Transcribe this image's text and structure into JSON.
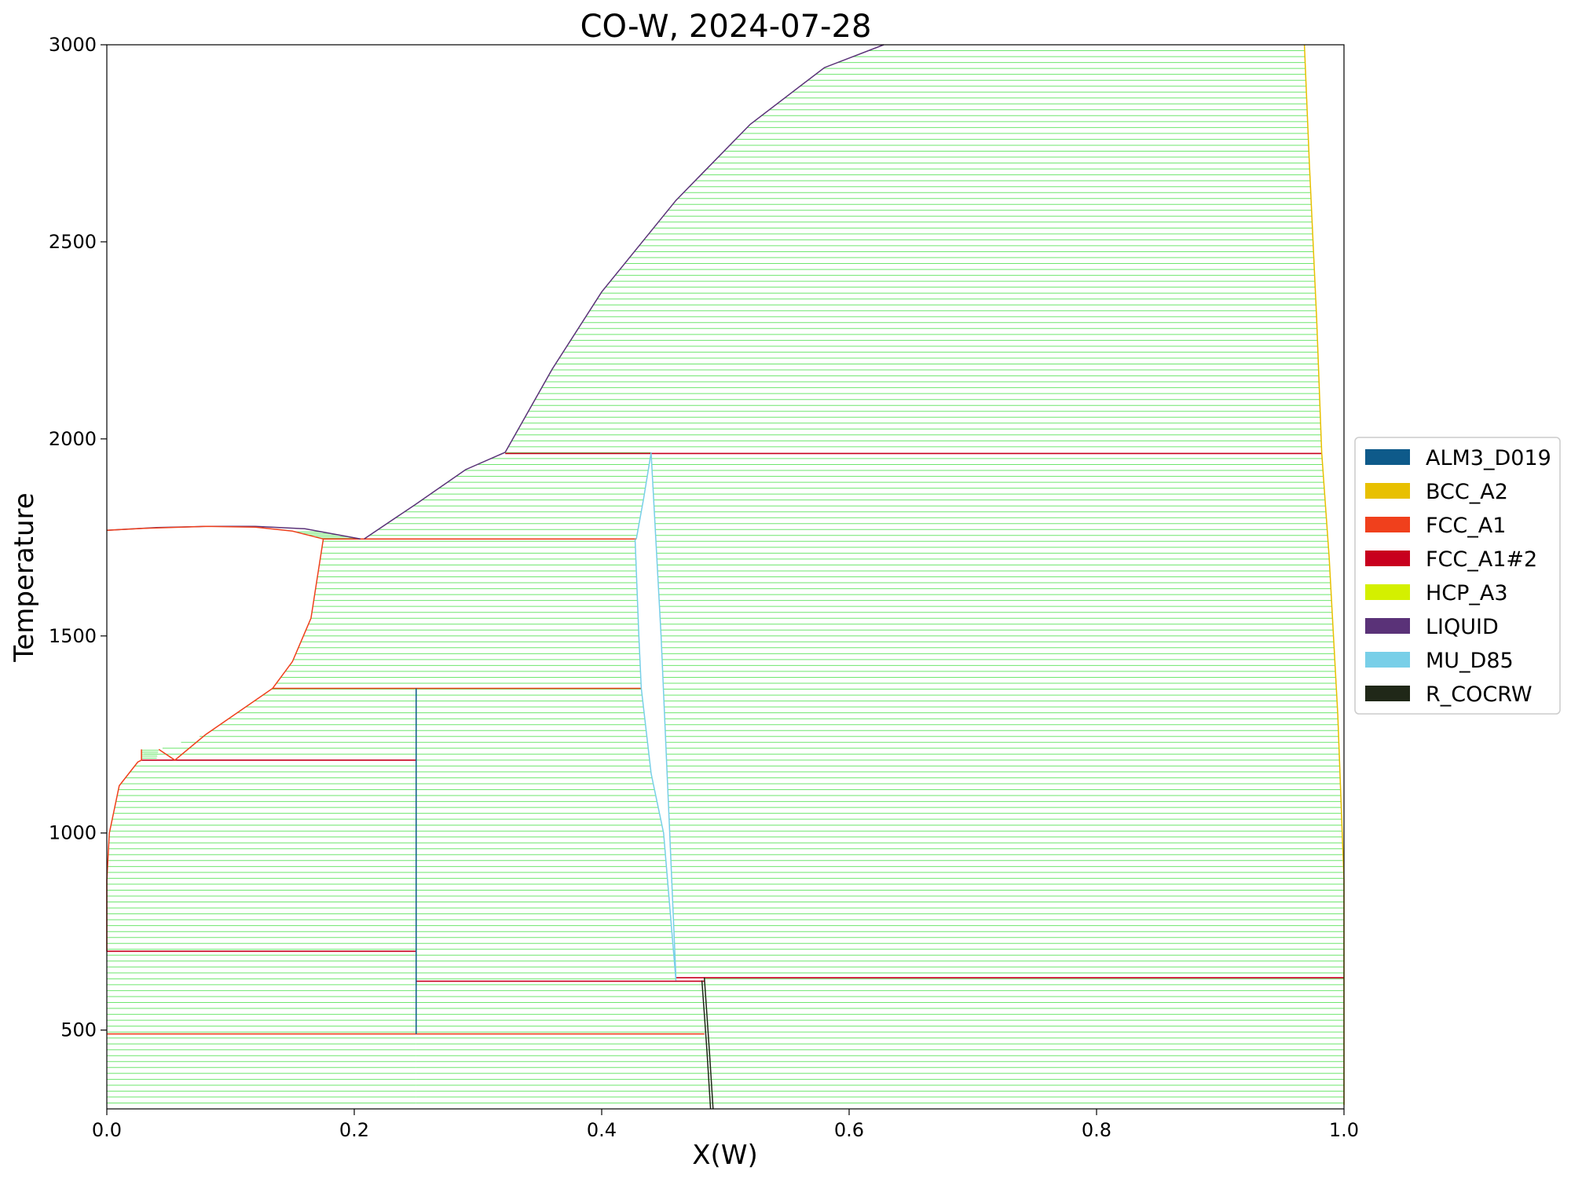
{
  "chart_data": {
    "type": "phase-diagram",
    "title": "CO-W, 2024-07-28",
    "xlabel": "X(W)",
    "ylabel": "Temperature",
    "xlim": [
      0.0,
      1.0
    ],
    "ylim": [
      300,
      3000
    ],
    "xticks": [
      0.0,
      0.2,
      0.4,
      0.6,
      0.8,
      1.0
    ],
    "xtick_labels": [
      "0.0",
      "0.2",
      "0.4",
      "0.6",
      "0.8",
      "1.0"
    ],
    "yticks": [
      500,
      1000,
      1500,
      2000,
      2500,
      3000
    ],
    "ytick_labels": [
      "500",
      "1000",
      "1500",
      "2000",
      "2500",
      "3000"
    ],
    "grid": false,
    "legend_position": "right-center",
    "tieline_color": "#6ee66e",
    "legend": [
      {
        "name": "ALM3_D019",
        "color": "#0e5a8a"
      },
      {
        "name": "BCC_A2",
        "color": "#e8c000"
      },
      {
        "name": "FCC_A1",
        "color": "#f0401c"
      },
      {
        "name": "FCC_A1#2",
        "color": "#c8001e"
      },
      {
        "name": "HCP_A3",
        "color": "#d4f000"
      },
      {
        "name": "LIQUID",
        "color": "#5a3278"
      },
      {
        "name": "MU_D85",
        "color": "#78cfe8"
      },
      {
        "name": "R_COCRW",
        "color": "#202818"
      }
    ],
    "two_phase_regions": [
      {
        "name": "liquid+fcc",
        "spacing": 4,
        "left": [
          [
            0.0,
            1768
          ],
          [
            0.03,
            1773
          ],
          [
            0.08,
            1778
          ],
          [
            0.12,
            1776
          ],
          [
            0.15,
            1766
          ],
          [
            0.175,
            1746
          ]
        ],
        "right": [
          [
            0.0,
            1768
          ],
          [
            0.04,
            1775
          ],
          [
            0.08,
            1778
          ],
          [
            0.12,
            1778
          ],
          [
            0.16,
            1772
          ],
          [
            0.205,
            1746
          ]
        ]
      },
      {
        "name": "liquid+mu",
        "spacing": 15,
        "left": [
          [
            0.208,
            1746
          ],
          [
            0.25,
            1835
          ],
          [
            0.29,
            1922
          ],
          [
            0.322,
            1966
          ]
        ],
        "right": [
          [
            0.428,
            1746
          ],
          [
            0.434,
            1850
          ],
          [
            0.44,
            1966
          ]
        ]
      },
      {
        "name": "liquid+bcc",
        "spacing": 15,
        "left": [
          [
            0.322,
            1966
          ],
          [
            0.36,
            2177
          ],
          [
            0.4,
            2373
          ],
          [
            0.46,
            2605
          ],
          [
            0.52,
            2798
          ],
          [
            0.58,
            2942
          ],
          [
            0.628,
            3000
          ]
        ],
        "right": [
          [
            0.982,
            1966
          ],
          [
            0.978,
            2300
          ],
          [
            0.972,
            2700
          ],
          [
            0.968,
            3000
          ]
        ]
      },
      {
        "name": "fcc+mu",
        "spacing": 15,
        "left": [
          [
            0.134,
            1367
          ],
          [
            0.15,
            1435
          ],
          [
            0.165,
            1545
          ],
          [
            0.175,
            1746
          ]
        ],
        "right": [
          [
            0.432,
            1367
          ],
          [
            0.43,
            1500
          ],
          [
            0.427,
            1746
          ]
        ]
      },
      {
        "name": "fcc+alm3-high",
        "spacing": 15,
        "left": [
          [
            0.03,
            1200
          ],
          [
            0.08,
            1250
          ],
          [
            0.134,
            1367
          ]
        ],
        "right": [
          [
            0.25,
            1200
          ],
          [
            0.25,
            1367
          ]
        ]
      },
      {
        "name": "fcc-small",
        "spacing": 5,
        "left": [
          [
            0.028,
            1185
          ],
          [
            0.028,
            1212
          ]
        ],
        "right": [
          [
            0.04,
            1185
          ],
          [
            0.042,
            1212
          ]
        ]
      },
      {
        "name": "fcc+alm3",
        "spacing": 15,
        "left": [
          [
            0.0,
            700
          ],
          [
            0.0,
            880
          ],
          [
            0.002,
            1000
          ],
          [
            0.01,
            1120
          ],
          [
            0.025,
            1180
          ],
          [
            0.045,
            1185
          ]
        ],
        "right": [
          [
            0.25,
            700
          ],
          [
            0.25,
            1185
          ]
        ]
      },
      {
        "name": "hcp+alm3",
        "spacing": 15,
        "left": [
          [
            0.0,
            310
          ],
          [
            0.0,
            700
          ]
        ],
        "right": [
          [
            0.25,
            310
          ],
          [
            0.25,
            700
          ]
        ]
      },
      {
        "name": "alm3+mu",
        "spacing": 15,
        "left": [
          [
            0.25,
            626
          ],
          [
            0.25,
            1367
          ]
        ],
        "right": [
          [
            0.46,
            626
          ],
          [
            0.45,
            1000
          ],
          [
            0.44,
            1150
          ],
          [
            0.432,
            1367
          ]
        ]
      },
      {
        "name": "mu+bcc",
        "spacing": 15,
        "left": [
          [
            0.46,
            633
          ],
          [
            0.455,
            1000
          ],
          [
            0.448,
            1500
          ],
          [
            0.44,
            1962
          ]
        ],
        "right": [
          [
            1.0,
            633
          ],
          [
            1.0,
            880
          ],
          [
            0.995,
            1300
          ],
          [
            0.988,
            1700
          ],
          [
            0.982,
            1962
          ]
        ]
      },
      {
        "name": "alm3+r",
        "spacing": 15,
        "left": [
          [
            0.25,
            310
          ],
          [
            0.25,
            626
          ]
        ],
        "right": [
          [
            0.49,
            310
          ],
          [
            0.487,
            450
          ],
          [
            0.483,
            626
          ]
        ]
      },
      {
        "name": "r+bcc",
        "spacing": 15,
        "left": [
          [
            0.49,
            310
          ],
          [
            0.487,
            450
          ],
          [
            0.483,
            633
          ]
        ],
        "right": [
          [
            1.0,
            310
          ],
          [
            1.0,
            633
          ]
        ]
      }
    ],
    "invariant_lines": [
      {
        "x": [
          0.322,
          0.982
        ],
        "y": 1963,
        "color": "#c8001e"
      },
      {
        "x": [
          0.175,
          0.428
        ],
        "y": 1746,
        "color": "#f0401c"
      },
      {
        "x": [
          0.134,
          0.432
        ],
        "y": 1367,
        "color": "#f0401c"
      },
      {
        "x": [
          0.028,
          0.25
        ],
        "y": 1185,
        "color": "#c8001e"
      },
      {
        "x": [
          0.0,
          0.25
        ],
        "y": 700,
        "color": "#c8001e"
      },
      {
        "x": [
          0.25,
          0.483
        ],
        "y": 624,
        "color": "#c8001e"
      },
      {
        "x": [
          0.46,
          1.0
        ],
        "y": 633,
        "color": "#c8001e"
      },
      {
        "x": [
          0.0,
          0.483
        ],
        "y": 490,
        "color": "#f0401c"
      }
    ],
    "phase_boundaries": [
      {
        "color": "#5a3278",
        "points": [
          [
            0.0,
            1768
          ],
          [
            0.04,
            1775
          ],
          [
            0.08,
            1778
          ],
          [
            0.12,
            1778
          ],
          [
            0.16,
            1772
          ],
          [
            0.205,
            1746
          ]
        ]
      },
      {
        "color": "#5a3278",
        "points": [
          [
            0.208,
            1746
          ],
          [
            0.25,
            1835
          ],
          [
            0.29,
            1922
          ],
          [
            0.322,
            1966
          ]
        ]
      },
      {
        "color": "#5a3278",
        "points": [
          [
            0.322,
            1966
          ],
          [
            0.36,
            2177
          ],
          [
            0.4,
            2373
          ],
          [
            0.46,
            2605
          ],
          [
            0.52,
            2798
          ],
          [
            0.58,
            2942
          ],
          [
            0.628,
            3000
          ]
        ]
      },
      {
        "color": "#f0401c",
        "points": [
          [
            0.0,
            1768
          ],
          [
            0.03,
            1773
          ],
          [
            0.08,
            1778
          ],
          [
            0.12,
            1776
          ],
          [
            0.15,
            1766
          ],
          [
            0.175,
            1746
          ]
        ]
      },
      {
        "color": "#f0401c",
        "points": [
          [
            0.175,
            1746
          ],
          [
            0.165,
            1545
          ],
          [
            0.15,
            1435
          ],
          [
            0.134,
            1367
          ],
          [
            0.08,
            1250
          ],
          [
            0.055,
            1185
          ],
          [
            0.042,
            1212
          ]
        ]
      },
      {
        "color": "#f0401c",
        "points": [
          [
            0.0,
            700
          ],
          [
            0.0,
            880
          ],
          [
            0.002,
            1000
          ],
          [
            0.01,
            1120
          ],
          [
            0.025,
            1180
          ],
          [
            0.028,
            1185
          ],
          [
            0.028,
            1212
          ]
        ]
      },
      {
        "color": "#e8c000",
        "points": [
          [
            0.968,
            3000
          ],
          [
            0.972,
            2700
          ],
          [
            0.978,
            2300
          ],
          [
            0.982,
            1966
          ],
          [
            0.988,
            1700
          ],
          [
            0.995,
            1300
          ],
          [
            1.0,
            880
          ],
          [
            1.0,
            310
          ]
        ]
      },
      {
        "color": "#78cfe8",
        "points": [
          [
            0.428,
            1746
          ],
          [
            0.434,
            1850
          ],
          [
            0.44,
            1966
          ]
        ]
      },
      {
        "color": "#78cfe8",
        "points": [
          [
            0.427,
            1746
          ],
          [
            0.43,
            1500
          ],
          [
            0.432,
            1367
          ],
          [
            0.44,
            1150
          ],
          [
            0.45,
            1000
          ],
          [
            0.46,
            626
          ]
        ]
      },
      {
        "color": "#78cfe8",
        "points": [
          [
            0.44,
            1962
          ],
          [
            0.448,
            1500
          ],
          [
            0.455,
            1000
          ],
          [
            0.46,
            633
          ]
        ]
      },
      {
        "color": "#0e5a8a",
        "points": [
          [
            0.25,
            490
          ],
          [
            0.25,
            1367
          ]
        ]
      },
      {
        "color": "#202818",
        "points": [
          [
            0.483,
            633
          ],
          [
            0.487,
            450
          ],
          [
            0.49,
            300
          ]
        ]
      },
      {
        "color": "#202818",
        "points": [
          [
            0.481,
            626
          ],
          [
            0.485,
            450
          ],
          [
            0.488,
            300
          ]
        ]
      }
    ]
  }
}
